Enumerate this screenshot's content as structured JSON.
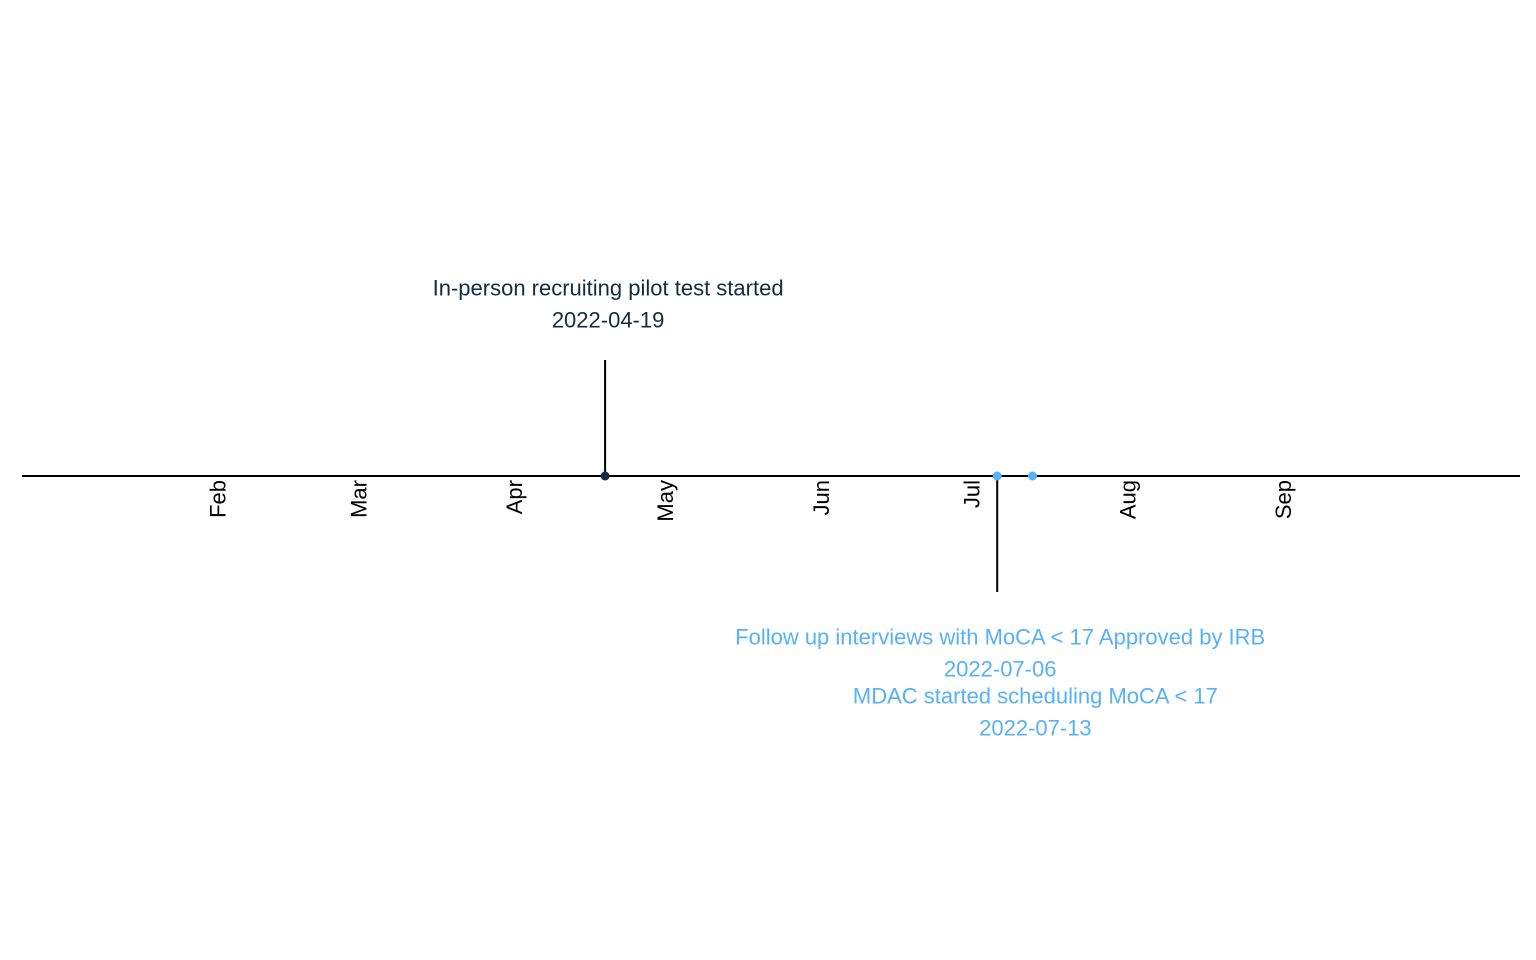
{
  "chart_data": {
    "type": "timeline",
    "title": "",
    "xlabel": "",
    "ylabel": "",
    "axis": {
      "months": [
        "Feb",
        "Mar",
        "Apr",
        "May",
        "Jun",
        "Jul",
        "Aug",
        "Sep"
      ],
      "month_dates": [
        "2022-02-01",
        "2022-03-01",
        "2022-04-01",
        "2022-05-01",
        "2022-06-01",
        "2022-07-01",
        "2022-08-01",
        "2022-09-01"
      ],
      "xlim": [
        "2021-12-24",
        "2022-10-18"
      ],
      "grid": false
    },
    "events": [
      {
        "label": "In-person recruiting pilot test started",
        "date": "2022-04-19",
        "side": "above",
        "color": "#132B43"
      },
      {
        "label": "Follow up interviews with MoCA < 17 Approved by IRB",
        "date": "2022-07-06",
        "side": "below",
        "color": "#56B1F7"
      },
      {
        "label": "MDAC started scheduling MoCA < 17",
        "date": "2022-07-13",
        "side": "below",
        "color": "#56B1F7"
      }
    ]
  }
}
